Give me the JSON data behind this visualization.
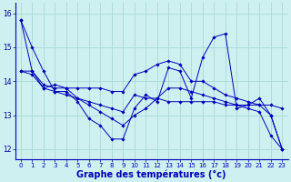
{
  "xlabel": "Graphe des températures (°c)",
  "background_color": "#cef0f0",
  "grid_color": "#aad8d8",
  "line_color": "#0000bb",
  "xlim": [
    -0.5,
    23.5
  ],
  "ylim": [
    11.7,
    16.3
  ],
  "yticks": [
    12,
    13,
    14,
    15,
    16
  ],
  "xticks": [
    0,
    1,
    2,
    3,
    4,
    5,
    6,
    7,
    8,
    9,
    10,
    11,
    12,
    13,
    14,
    15,
    16,
    17,
    18,
    19,
    20,
    21,
    22,
    23
  ],
  "xlabel_fontsize": 7.0,
  "xlabel_color": "#0000bb",
  "tick_labelsize": 5.5,
  "series": [
    [
      15.8,
      15.0,
      14.3,
      13.7,
      13.7,
      13.4,
      12.9,
      12.7,
      12.3,
      12.3,
      13.2,
      13.6,
      13.4,
      14.4,
      14.3,
      13.5,
      14.7,
      15.3,
      15.4,
      13.2,
      13.3,
      13.5,
      13.0,
      12.0
    ],
    [
      15.8,
      14.3,
      13.9,
      13.8,
      13.8,
      13.5,
      13.3,
      13.1,
      12.9,
      12.7,
      13.0,
      13.2,
      13.5,
      13.8,
      13.8,
      13.7,
      13.6,
      13.5,
      13.4,
      13.3,
      13.2,
      13.1,
      12.4,
      12.0
    ],
    [
      14.3,
      14.3,
      13.8,
      13.7,
      13.6,
      13.5,
      13.4,
      13.3,
      13.2,
      13.1,
      13.6,
      13.5,
      13.5,
      13.4,
      13.4,
      13.4,
      13.4,
      13.4,
      13.3,
      13.3,
      13.3,
      13.3,
      13.3,
      13.2
    ],
    [
      14.3,
      14.2,
      13.8,
      13.9,
      13.8,
      13.8,
      13.8,
      13.8,
      13.7,
      13.7,
      14.2,
      14.3,
      14.5,
      14.6,
      14.5,
      14.0,
      14.0,
      13.8,
      13.6,
      13.5,
      13.4,
      13.3,
      13.0,
      12.0
    ]
  ]
}
